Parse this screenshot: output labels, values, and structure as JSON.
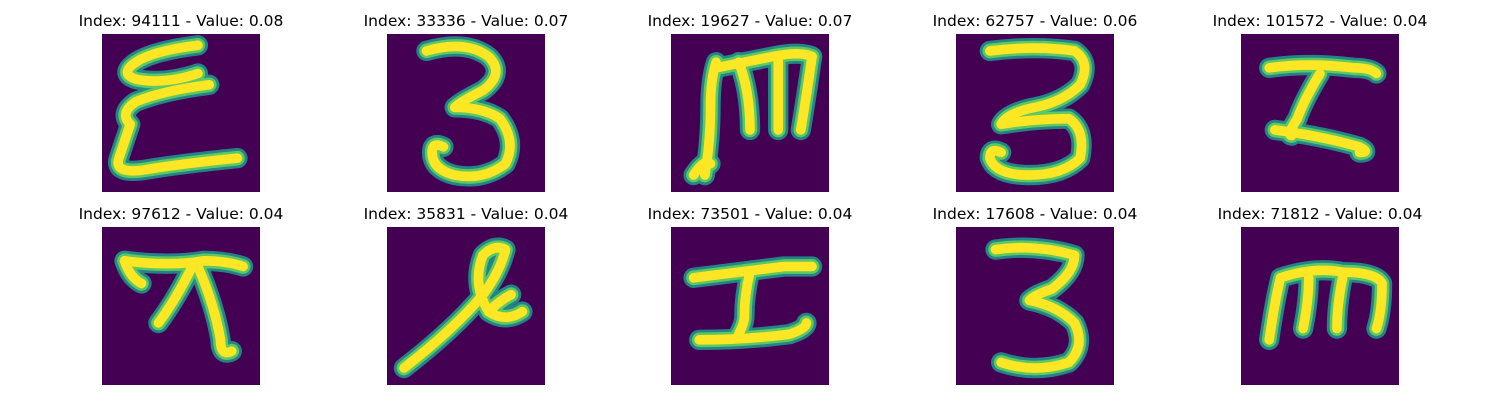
{
  "figure": {
    "background": "#ffffff",
    "colormap": "viridis",
    "rows": 2,
    "cols": 5
  },
  "colors": {
    "image_background": "#440154",
    "stroke_core": "#fde725",
    "stroke_mid": "#5ec962",
    "stroke_edge": "#21918c"
  },
  "panels": [
    {
      "title": "Index: 94111 - Value: 0.08",
      "index": 94111,
      "value": 0.08,
      "glyph": "E"
    },
    {
      "title": "Index: 33336 - Value: 0.07",
      "index": 33336,
      "value": 0.07,
      "glyph": "3"
    },
    {
      "title": "Index: 19627 - Value: 0.07",
      "index": 19627,
      "value": 0.07,
      "glyph": "m"
    },
    {
      "title": "Index: 62757 - Value: 0.06",
      "index": 62757,
      "value": 0.06,
      "glyph": "3"
    },
    {
      "title": "Index: 101572 - Value: 0.04",
      "index": 101572,
      "value": 0.04,
      "glyph": "I"
    },
    {
      "title": "Index: 97612 - Value: 0.04",
      "index": 97612,
      "value": 0.04,
      "glyph": "ㅈ"
    },
    {
      "title": "Index: 35831 - Value: 0.04",
      "index": 35831,
      "value": 0.04,
      "glyph": "ℓ"
    },
    {
      "title": "Index: 73501 - Value: 0.04",
      "index": 73501,
      "value": 0.04,
      "glyph": "I"
    },
    {
      "title": "Index: 17608 - Value: 0.04",
      "index": 17608,
      "value": 0.04,
      "glyph": "3"
    },
    {
      "title": "Index: 71812 - Value: 0.04",
      "index": 71812,
      "value": 0.04,
      "glyph": "m"
    }
  ]
}
